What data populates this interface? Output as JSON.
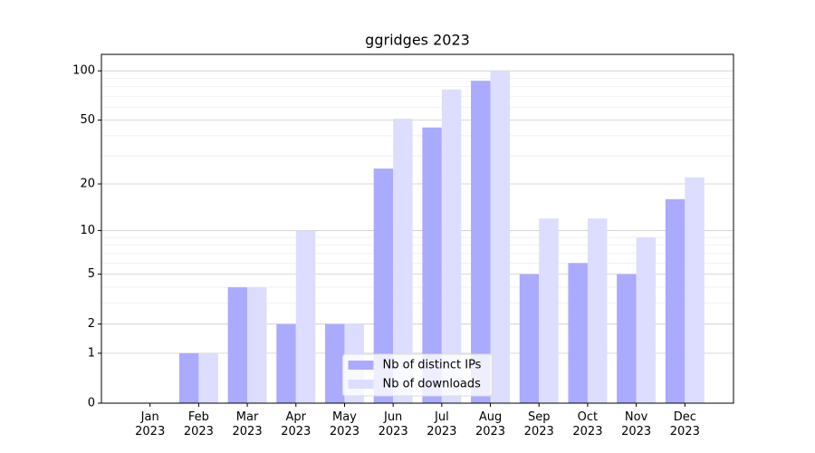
{
  "chart_data": {
    "type": "bar",
    "title": "ggridges 2023",
    "categories": [
      "Jan\n2023",
      "Feb\n2023",
      "Mar\n2023",
      "Apr\n2023",
      "May\n2023",
      "Jun\n2023",
      "Jul\n2023",
      "Aug\n2023",
      "Sep\n2023",
      "Oct\n2023",
      "Nov\n2023",
      "Dec\n2023"
    ],
    "series": [
      {
        "name": "Nb of distinct IPs",
        "color": "#aaaaff",
        "values": [
          0,
          1,
          4,
          2,
          2,
          25,
          45,
          87,
          5,
          6,
          5,
          16
        ]
      },
      {
        "name": "Nb of downloads",
        "color": "#ddddff",
        "values": [
          0,
          1,
          4,
          10,
          2,
          51,
          77,
          100,
          12,
          12,
          9,
          22
        ]
      }
    ],
    "yscale": "log1p",
    "ylim": [
      0,
      126
    ],
    "yticks": [
      0,
      1,
      2,
      5,
      10,
      20,
      50,
      100
    ],
    "minor_yticks": [
      3,
      4,
      6,
      7,
      8,
      9,
      30,
      40,
      60,
      70,
      80,
      90
    ],
    "grid": true,
    "legend": "lower center"
  }
}
